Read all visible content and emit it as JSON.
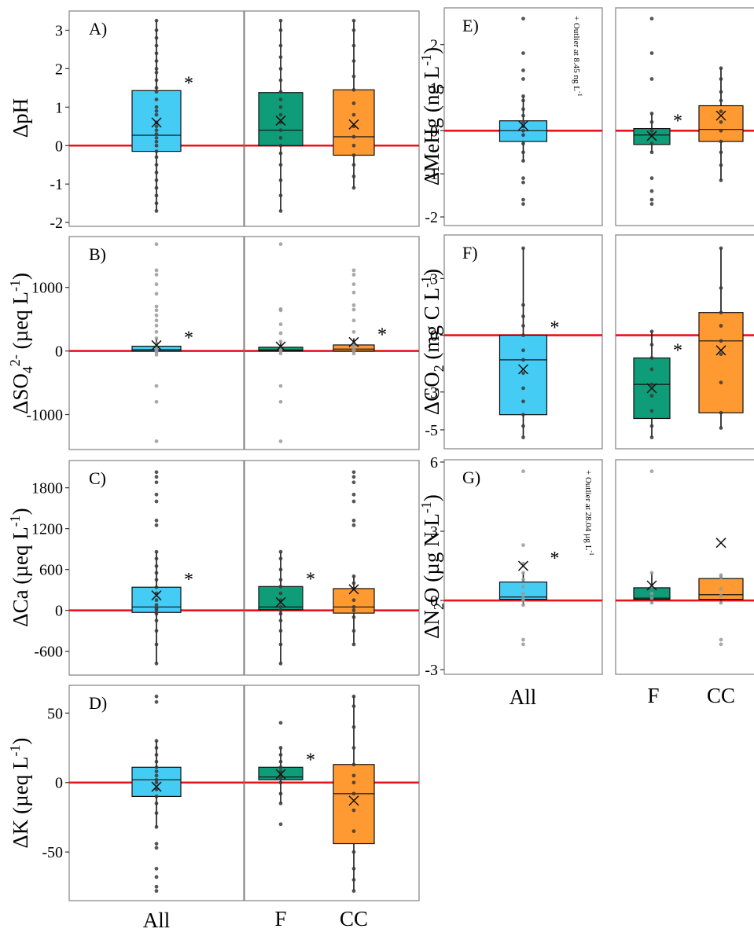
{
  "colors": {
    "All": "#45ccf5",
    "F": "#0f9d79",
    "CC": "#ff9a33",
    "zero_line": "#e8141c",
    "point": "#3a3a3a",
    "point_light": "#9a9a9a",
    "frame": "#8a8a8a"
  },
  "category_labels": {
    "all": "All",
    "f": "F",
    "cc": "CC"
  },
  "chart_data": [
    {
      "panel": "A)",
      "type": "box",
      "ylabel": "ΔpH",
      "ylim": [
        -2.1,
        3.5
      ],
      "yticks": [
        -2,
        -1,
        0,
        1,
        2,
        3
      ],
      "tick_labels": [
        "-2",
        "-1",
        "0",
        "1",
        "2",
        "3"
      ],
      "groups": [
        {
          "name": "All",
          "q1": -0.15,
          "median": 0.27,
          "q3": 1.43,
          "mean": 0.6,
          "wlo": -1.7,
          "whi": 3.25,
          "star": "*",
          "points_style": "dark",
          "points": [
            -1.7,
            -1.5,
            -1.3,
            -1.1,
            -0.9,
            -0.7,
            -0.5,
            -0.3,
            -0.15,
            0.0,
            0.1,
            0.2,
            0.3,
            0.4,
            0.5,
            0.6,
            0.8,
            0.9,
            1.0,
            1.2,
            1.4,
            1.5,
            1.7,
            1.9,
            2.0,
            2.2,
            2.4,
            2.6,
            2.8,
            3.0,
            3.25
          ]
        },
        {
          "name": "F",
          "q1": 0.0,
          "median": 0.4,
          "q3": 1.38,
          "mean": 0.65,
          "wlo": -1.7,
          "whi": 3.25,
          "star": "",
          "points_style": "dark",
          "points": [
            -1.7,
            -1.3,
            -0.9,
            -0.5,
            -0.2,
            0.0,
            0.2,
            0.4,
            0.6,
            0.8,
            1.0,
            1.2,
            1.4,
            1.7,
            2.0,
            2.3,
            2.6,
            3.0,
            3.25
          ]
        },
        {
          "name": "CC",
          "q1": -0.25,
          "median": 0.23,
          "q3": 1.45,
          "mean": 0.55,
          "wlo": -1.1,
          "whi": 3.25,
          "star": "",
          "points_style": "dark",
          "points": [
            -1.1,
            -0.8,
            -0.5,
            -0.25,
            0.0,
            0.23,
            0.5,
            0.8,
            1.1,
            1.45,
            1.8,
            2.2,
            2.6,
            3.0,
            3.25
          ]
        }
      ]
    },
    {
      "panel": "B)",
      "type": "box",
      "ylabel": "ΔSO4 2- (µeq L -1)",
      "ylim": [
        -1550,
        1800
      ],
      "yticks": [
        -1000,
        0,
        1000
      ],
      "tick_labels": [
        "-1000",
        "0",
        "1000"
      ],
      "groups": [
        {
          "name": "All",
          "q1": 0,
          "median": 20,
          "q3": 75,
          "mean": 90,
          "wlo": -10,
          "whi": 200,
          "star": "*",
          "points_style": "light",
          "points": [
            -1420,
            -800,
            -550,
            -60,
            -20,
            0,
            20,
            40,
            60,
            80,
            120,
            200,
            300,
            400,
            480,
            560,
            640,
            700,
            900,
            1050,
            1200,
            1270,
            1680
          ]
        },
        {
          "name": "F",
          "q1": 0,
          "median": 15,
          "q3": 60,
          "mean": 70,
          "wlo": -10,
          "whi": 150,
          "star": "",
          "points_style": "light",
          "points": [
            -1420,
            -800,
            -550,
            -40,
            0,
            20,
            60,
            150,
            280,
            420,
            640,
            660,
            1680
          ]
        },
        {
          "name": "CC",
          "q1": 0,
          "median": 30,
          "q3": 95,
          "mean": 140,
          "wlo": -15,
          "whi": 200,
          "star": "*",
          "points_style": "light",
          "points": [
            -40,
            0,
            30,
            80,
            120,
            300,
            480,
            650,
            720,
            920,
            1050,
            1200,
            1270
          ]
        }
      ]
    },
    {
      "panel": "C)",
      "type": "box",
      "ylabel": "ΔCa (µeq L -1)",
      "ylim": [
        -950,
        2200
      ],
      "yticks": [
        -600,
        0,
        600,
        1200,
        1800
      ],
      "tick_labels": [
        "-600",
        "0",
        "600",
        "1200",
        "1800"
      ],
      "groups": [
        {
          "name": "All",
          "q1": -30,
          "median": 50,
          "q3": 340,
          "mean": 220,
          "wlo": -780,
          "whi": 860,
          "star": "*",
          "points_style": "dark",
          "points": [
            -780,
            -500,
            -300,
            -150,
            -50,
            0,
            30,
            80,
            150,
            250,
            340,
            450,
            550,
            650,
            760,
            860,
            1250,
            1320,
            1600,
            1700,
            1880,
            1960,
            2030
          ]
        },
        {
          "name": "F",
          "q1": 10,
          "median": 50,
          "q3": 350,
          "mean": 120,
          "wlo": -780,
          "whi": 860,
          "star": "*",
          "points_style": "dark",
          "points": [
            -780,
            -500,
            -300,
            -150,
            -50,
            0,
            50,
            150,
            250,
            350,
            450,
            600,
            760,
            860
          ]
        },
        {
          "name": "CC",
          "q1": -40,
          "median": 50,
          "q3": 320,
          "mean": 310,
          "wlo": -500,
          "whi": 500,
          "star": "",
          "points_style": "dark",
          "points": [
            -500,
            -300,
            -100,
            0,
            50,
            150,
            320,
            400,
            500,
            1250,
            1320,
            1600,
            1700,
            1880,
            1960,
            2030
          ]
        }
      ]
    },
    {
      "panel": "D)",
      "type": "box",
      "ylabel": "ΔK (µeq L -1)",
      "ylim": [
        -85,
        70
      ],
      "yticks": [
        -50,
        0,
        50
      ],
      "tick_labels": [
        "-50",
        "0",
        "50"
      ],
      "groups": [
        {
          "name": "All",
          "q1": -10,
          "median": 2,
          "q3": 11,
          "mean": -3,
          "wlo": -32,
          "whi": 30,
          "star": "",
          "points_style": "dark",
          "points": [
            -78,
            -75,
            -68,
            -62,
            -47,
            -44,
            -32,
            -22,
            -15,
            -10,
            -5,
            0,
            2,
            5,
            8,
            11,
            15,
            20,
            25,
            30,
            58,
            62
          ]
        },
        {
          "name": "F",
          "q1": 2,
          "median": 4,
          "q3": 11,
          "mean": 6,
          "wlo": -15,
          "whi": 25,
          "star": "*",
          "points_style": "dark",
          "points": [
            -30,
            -15,
            -8,
            0,
            3,
            5,
            8,
            11,
            15,
            20,
            25,
            43
          ]
        },
        {
          "name": "CC",
          "q1": -44,
          "median": -8,
          "q3": 13,
          "mean": -13,
          "wlo": -78,
          "whi": 62,
          "star": "",
          "points_style": "dark",
          "points": [
            -78,
            -70,
            -62,
            -50,
            -35,
            -20,
            -8,
            0,
            5,
            13,
            25,
            40,
            55,
            62
          ]
        }
      ]
    },
    {
      "panel": "E)",
      "type": "box",
      "ylabel": "ΔMeHg (ng L -1)",
      "note": "+ Outlier at 8.45 ng L -1",
      "ylim": [
        -2.2,
        2.85
      ],
      "yticks": [
        -2,
        -1,
        0,
        1,
        2
      ],
      "tick_labels": [
        "-2",
        "-1",
        "0",
        "1",
        "2"
      ],
      "groups": [
        {
          "name": "All",
          "q1": -0.25,
          "median": 0.0,
          "q3": 0.23,
          "mean": 0.12,
          "wlo": -0.7,
          "whi": 0.8,
          "star": "",
          "points_style": "dark",
          "points": [
            -1.7,
            -1.6,
            -1.2,
            -1.1,
            -0.7,
            -0.5,
            -0.3,
            -0.1,
            0.0,
            0.1,
            0.2,
            0.35,
            0.5,
            0.7,
            0.8,
            1.2,
            1.4,
            1.8,
            2.6
          ]
        },
        {
          "name": "F",
          "q1": -0.32,
          "median": -0.1,
          "q3": 0.05,
          "mean": -0.12,
          "wlo": -0.5,
          "whi": 0.4,
          "star": "*",
          "points_style": "dark",
          "points": [
            -1.7,
            -1.6,
            -1.4,
            -1.1,
            -0.5,
            -0.3,
            -0.1,
            0.0,
            0.2,
            0.4,
            1.2,
            1.8,
            2.6
          ]
        },
        {
          "name": "CC",
          "q1": -0.25,
          "median": 0.03,
          "q3": 0.58,
          "mean": 0.35,
          "wlo": -1.15,
          "whi": 1.45,
          "star": "",
          "points_style": "dark",
          "points": [
            -1.15,
            -0.8,
            -0.5,
            -0.25,
            0.0,
            0.2,
            0.45,
            0.7,
            0.9,
            1.2,
            1.45
          ]
        }
      ]
    },
    {
      "panel": "F)",
      "type": "box",
      "ylabel": "ΔCO2 (mg C L -1)",
      "ylim": [
        -6.0,
        5.3
      ],
      "yticks": [
        -5,
        -3,
        0,
        3
      ],
      "tick_labels": [
        "-5",
        "-3",
        "0",
        "3"
      ],
      "groups": [
        {
          "name": "All",
          "q1": -4.2,
          "median": -1.3,
          "q3": 0.0,
          "mean": -1.8,
          "wlo": -5.4,
          "whi": 4.6,
          "star": "*",
          "points_style": "dark",
          "points": [
            -5.4,
            -4.8,
            -4.2,
            -3.5,
            -2.8,
            -2.0,
            -1.3,
            -0.8,
            0.0,
            0.5,
            1.0,
            1.6,
            4.6
          ]
        },
        {
          "name": "F",
          "q1": -4.4,
          "median": -2.6,
          "q3": -1.2,
          "mean": -2.8,
          "wlo": -5.4,
          "whi": 0.2,
          "star": "*",
          "points_style": "dark",
          "points": [
            -5.4,
            -4.8,
            -4.0,
            -3.2,
            -2.6,
            -1.8,
            -1.2,
            -0.5,
            0.2
          ]
        },
        {
          "name": "CC",
          "q1": -4.1,
          "median": -0.3,
          "q3": 1.2,
          "mean": -0.8,
          "wlo": -4.9,
          "whi": 4.6,
          "star": "",
          "points_style": "dark",
          "points": [
            -4.9,
            -4.1,
            -2.5,
            -1.0,
            -0.3,
            0.5,
            1.2,
            2.5,
            4.6
          ]
        }
      ]
    },
    {
      "panel": "G)",
      "type": "box",
      "ylabel": "ΔN2O (µg N L -1)",
      "note": "+ Outlier at 28.04 µg L -1",
      "ylim": [
        -3.2,
        6.1
      ],
      "yticks": [
        -3,
        0,
        3,
        6
      ],
      "tick_labels": [
        "-3",
        "0",
        "3",
        "6"
      ],
      "groups": [
        {
          "name": "All",
          "q1": 0.05,
          "median": 0.15,
          "q3": 0.8,
          "mean": 1.5,
          "wlo": -0.2,
          "whi": 1.2,
          "star": "*",
          "points_style": "light",
          "points": [
            -1.9,
            -1.7,
            -0.2,
            0.0,
            0.1,
            0.3,
            0.6,
            0.9,
            1.2,
            1.6,
            2.4,
            5.6
          ]
        },
        {
          "name": "F",
          "q1": 0.05,
          "median": 0.1,
          "q3": 0.55,
          "mean": 0.65,
          "wlo": -0.1,
          "whi": 1.2,
          "star": "",
          "points_style": "light",
          "points": [
            -0.1,
            0.1,
            0.3,
            0.6,
            1.2,
            5.6
          ]
        },
        {
          "name": "CC",
          "q1": 0.05,
          "median": 0.25,
          "q3": 0.95,
          "mean": 2.5,
          "wlo": -0.1,
          "whi": 1.1,
          "star": "",
          "points_style": "light",
          "points": [
            -1.9,
            -1.7,
            -0.1,
            0.2,
            0.5,
            1.0,
            1.1
          ]
        }
      ]
    }
  ]
}
